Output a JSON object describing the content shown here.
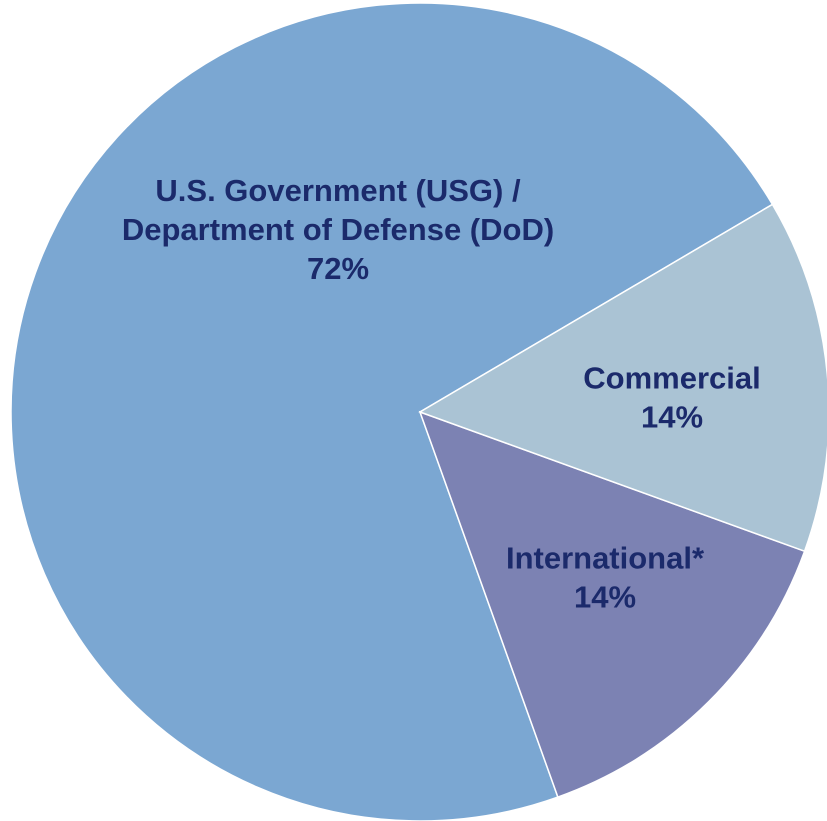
{
  "chart_data": {
    "type": "pie",
    "slices": [
      {
        "label": "U.S. Government (USG) /\nDepartment of Defense (DoD)",
        "value": 72,
        "value_label": "72%",
        "color": "#7ba7d2"
      },
      {
        "label": "Commercial",
        "value": 14,
        "value_label": "14%",
        "color": "#7c82b3"
      },
      {
        "label": "International*",
        "value": 14,
        "value_label": "14%",
        "color": "#aac3d4"
      }
    ],
    "label_color": "#1b2a6b"
  }
}
